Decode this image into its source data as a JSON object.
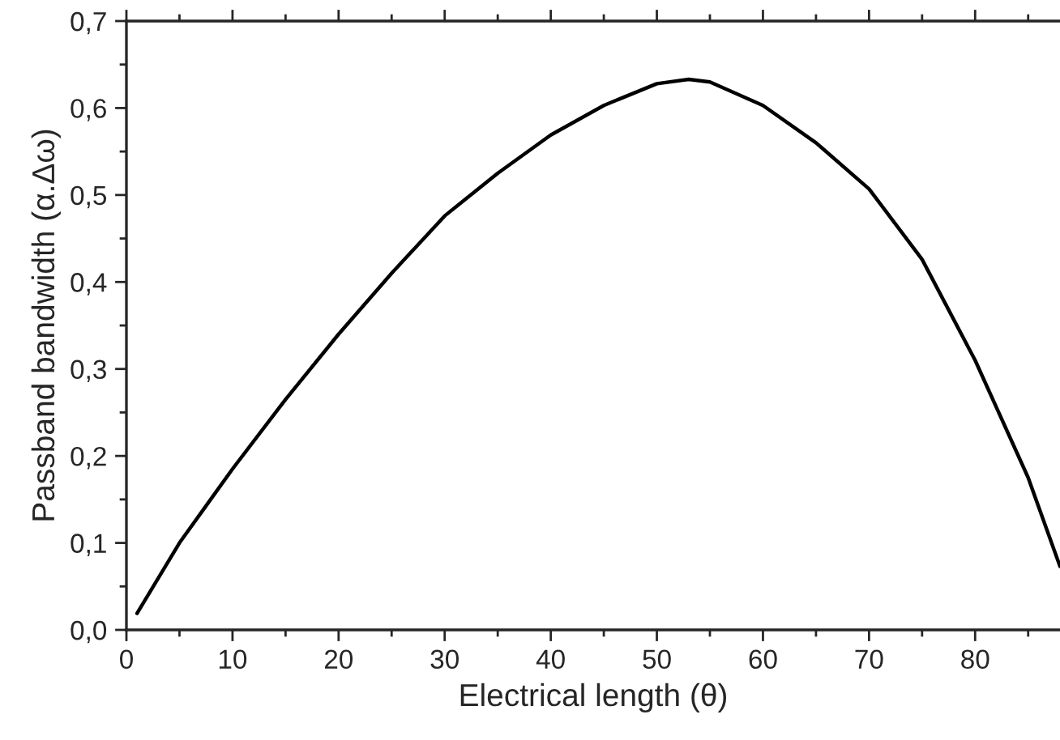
{
  "chart_data": {
    "type": "line",
    "xlabel": "Electrical length (θ)",
    "ylabel": "Passband bandwidth (α.Δω)",
    "xlim": [
      0,
      88
    ],
    "xticks": [
      0,
      10,
      20,
      30,
      40,
      50,
      60,
      70,
      80
    ],
    "ylim": [
      0,
      0.7
    ],
    "yticks": [
      {
        "value": 0,
        "label": "0,0"
      },
      {
        "value": 0.1,
        "label": "0,1"
      },
      {
        "value": 0.2,
        "label": "0,2"
      },
      {
        "value": 0.3,
        "label": "0,3"
      },
      {
        "value": 0.4,
        "label": "0,4"
      },
      {
        "value": 0.5,
        "label": "0,5"
      },
      {
        "value": 0.6,
        "label": "0,6"
      },
      {
        "value": 0.7,
        "label": "0,7"
      }
    ],
    "grid": false,
    "legend": false,
    "marker": "none",
    "line_style": "solid",
    "series": [
      {
        "color": "#000000",
        "x": [
          1,
          5,
          10,
          15,
          20,
          25,
          30,
          35,
          40,
          45,
          50,
          53,
          55,
          60,
          65,
          70,
          75,
          80,
          85,
          88
        ],
        "values": [
          0.019,
          0.1,
          0.185,
          0.265,
          0.34,
          0.41,
          0.476,
          0.525,
          0.569,
          0.603,
          0.628,
          0.633,
          0.63,
          0.603,
          0.56,
          0.507,
          0.426,
          0.31,
          0.175,
          0.073
        ]
      }
    ]
  }
}
